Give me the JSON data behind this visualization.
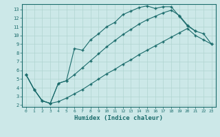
{
  "xlabel": "Humidex (Indice chaleur)",
  "bg_color": "#cce8e8",
  "line_color": "#1a6b6b",
  "grid_color": "#b0d4d0",
  "xlim": [
    -0.5,
    23.5
  ],
  "ylim": [
    1.8,
    13.6
  ],
  "xticks": [
    0,
    1,
    2,
    3,
    4,
    5,
    6,
    7,
    8,
    9,
    10,
    11,
    12,
    13,
    14,
    15,
    16,
    17,
    18,
    19,
    20,
    21,
    22,
    23
  ],
  "yticks": [
    2,
    3,
    4,
    5,
    6,
    7,
    8,
    9,
    10,
    11,
    12,
    13
  ],
  "line1_x": [
    0,
    1,
    2,
    3,
    4,
    5,
    6,
    7,
    8,
    9,
    10,
    11,
    12,
    13,
    14,
    15,
    16,
    17,
    18,
    19,
    20,
    21
  ],
  "line1_y": [
    5.5,
    3.8,
    2.5,
    2.2,
    4.5,
    4.8,
    8.5,
    8.3,
    9.5,
    10.2,
    11.0,
    11.5,
    12.4,
    12.8,
    13.2,
    13.4,
    13.1,
    13.3,
    13.3,
    12.2,
    11.1,
    10.5
  ],
  "line2_x": [
    0,
    1,
    2,
    3,
    4,
    5,
    6,
    7,
    8,
    9,
    10,
    11,
    12,
    13,
    14,
    15,
    16,
    17,
    18,
    19,
    20,
    21,
    22,
    23
  ],
  "line2_y": [
    5.5,
    3.8,
    2.5,
    2.2,
    2.4,
    2.8,
    3.3,
    3.8,
    4.4,
    5.0,
    5.6,
    6.1,
    6.7,
    7.2,
    7.8,
    8.3,
    8.8,
    9.3,
    9.8,
    10.3,
    10.8,
    10.0,
    9.5,
    9.0
  ],
  "line3_x": [
    0,
    1,
    2,
    3,
    4,
    5,
    6,
    7,
    8,
    9,
    10,
    11,
    12,
    13,
    14,
    15,
    16,
    17,
    18,
    19,
    20,
    21,
    22,
    23
  ],
  "line3_y": [
    5.5,
    3.8,
    2.5,
    2.2,
    4.5,
    4.8,
    5.5,
    6.3,
    7.1,
    7.9,
    8.7,
    9.4,
    10.1,
    10.7,
    11.3,
    11.8,
    12.2,
    12.6,
    12.9,
    12.3,
    11.2,
    10.5,
    10.2,
    9.0
  ]
}
